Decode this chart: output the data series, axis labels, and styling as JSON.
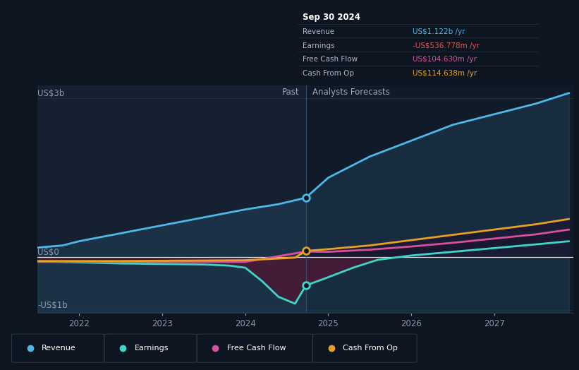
{
  "bg_color": "#0d1520",
  "plot_bg_left": "#111e2e",
  "plot_bg_right": "#0e1828",
  "tooltip_date": "Sep 30 2024",
  "tooltip_rows": [
    {
      "label": "Revenue",
      "value": "US$1.122b /yr",
      "color": "#4db8e8"
    },
    {
      "label": "Earnings",
      "value": "-US$536.778m /yr",
      "color": "#e85050"
    },
    {
      "label": "Free Cash Flow",
      "value": "US$104.630m /yr",
      "color": "#d94f9e"
    },
    {
      "label": "Cash From Op",
      "value": "US$114.638m /yr",
      "color": "#e8a020"
    }
  ],
  "ylabel_top": "US$3b",
  "ylabel_mid": "US$0",
  "ylabel_bot": "-US$1b",
  "past_label": "Past",
  "forecast_label": "Analysts Forecasts",
  "split_x": 2024.73,
  "x_ticks": [
    2022,
    2023,
    2024,
    2025,
    2026,
    2027
  ],
  "revenue_color": "#4db8e8",
  "earnings_color": "#3dd6c8",
  "fcf_color": "#d94f9e",
  "cashop_color": "#e8a020",
  "revenue_past_x": [
    2021.5,
    2021.8,
    2022.0,
    2022.5,
    2023.0,
    2023.5,
    2024.0,
    2024.4,
    2024.73
  ],
  "revenue_past_y": [
    0.18,
    0.22,
    0.3,
    0.45,
    0.6,
    0.75,
    0.9,
    1.0,
    1.122
  ],
  "revenue_fut_x": [
    2024.73,
    2025.0,
    2025.5,
    2026.0,
    2026.5,
    2027.0,
    2027.5,
    2027.9
  ],
  "revenue_fut_y": [
    1.122,
    1.5,
    1.9,
    2.2,
    2.5,
    2.7,
    2.9,
    3.1
  ],
  "earnings_past_x": [
    2021.5,
    2022.0,
    2022.5,
    2023.0,
    2023.5,
    2023.8,
    2024.0,
    2024.2,
    2024.4,
    2024.6,
    2024.73
  ],
  "earnings_past_y": [
    -0.08,
    -0.1,
    -0.12,
    -0.13,
    -0.14,
    -0.16,
    -0.2,
    -0.45,
    -0.75,
    -0.88,
    -0.537
  ],
  "earnings_fut_x": [
    2024.73,
    2025.0,
    2025.3,
    2025.6,
    2026.0,
    2026.5,
    2027.0,
    2027.5,
    2027.9
  ],
  "earnings_fut_y": [
    -0.537,
    -0.38,
    -0.2,
    -0.05,
    0.03,
    0.1,
    0.17,
    0.24,
    0.3
  ],
  "fcf_past_x": [
    2021.5,
    2022.0,
    2022.5,
    2023.0,
    2023.5,
    2024.0,
    2024.73
  ],
  "fcf_past_y": [
    -0.09,
    -0.09,
    -0.09,
    -0.09,
    -0.09,
    -0.09,
    0.105
  ],
  "fcf_fut_x": [
    2024.73,
    2025.0,
    2025.5,
    2026.0,
    2026.5,
    2027.0,
    2027.5,
    2027.9
  ],
  "fcf_fut_y": [
    0.105,
    0.1,
    0.14,
    0.2,
    0.27,
    0.35,
    0.43,
    0.52
  ],
  "cashop_past_x": [
    2021.5,
    2022.0,
    2022.5,
    2023.0,
    2023.5,
    2024.0,
    2024.6,
    2024.73
  ],
  "cashop_past_y": [
    -0.075,
    -0.075,
    -0.075,
    -0.07,
    -0.065,
    -0.06,
    -0.01,
    0.115
  ],
  "cashop_fut_x": [
    2024.73,
    2025.0,
    2025.5,
    2026.0,
    2026.5,
    2027.0,
    2027.5,
    2027.9
  ],
  "cashop_fut_y": [
    0.115,
    0.15,
    0.22,
    0.32,
    0.42,
    0.52,
    0.62,
    0.72
  ],
  "xlim": [
    2021.5,
    2027.95
  ],
  "ylim": [
    -1.05,
    3.25
  ]
}
